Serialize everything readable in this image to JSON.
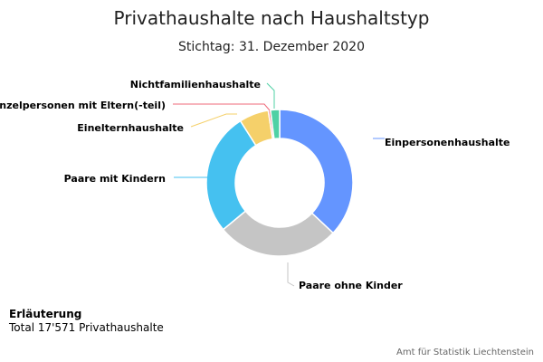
{
  "chart_data": {
    "type": "pie",
    "variant": "donut",
    "title": "Privathaushalte nach Haushaltstyp",
    "subtitle": "Stichtag: 31. Dezember 2020",
    "series": [
      {
        "name": "Einpersonenhaushalte",
        "value": 37.0,
        "color": "#6495ff"
      },
      {
        "name": "Paare ohne Kinder",
        "value": 27.0,
        "color": "#c5c5c5"
      },
      {
        "name": "Paare mit Kindern",
        "value": 27.0,
        "color": "#45c1f0"
      },
      {
        "name": "Einelternhaushalte",
        "value": 6.5,
        "color": "#f5d06a"
      },
      {
        "name": "Einzelpersonen mit Eltern(-teil)",
        "value": 0.5,
        "color": "#ef6a7a"
      },
      {
        "name": "Nichtfamilienhaushalte",
        "value": 2.0,
        "color": "#4fd1a5"
      }
    ]
  },
  "note": {
    "heading": "Erläuterung",
    "text": "Total 17'571 Privathaushalte"
  },
  "credits": "Amt für Statistik Liechtenstein"
}
